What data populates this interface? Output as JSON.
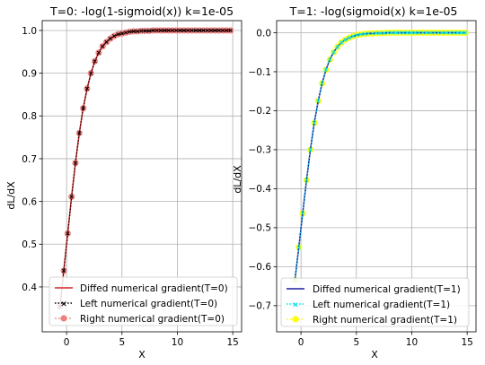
{
  "chart_data": [
    {
      "type": "line",
      "title": "T=0: -log(1-sigmoid(x)) k=1e-05",
      "xlabel": "X",
      "ylabel": "dL/dX",
      "xlim": [
        -2.2,
        15.8
      ],
      "ylim": [
        0.295,
        1.023
      ],
      "xticks": [
        0,
        5,
        10,
        15
      ],
      "xtick_labels": [
        "0",
        "5",
        "10",
        "15"
      ],
      "yticks": [
        0.4,
        0.5,
        0.6,
        0.7,
        0.8,
        0.9,
        1.0
      ],
      "ytick_labels": [
        "0.4",
        "0.5",
        "0.6",
        "0.7",
        "0.8",
        "0.9",
        "1.0"
      ],
      "grid": true,
      "legend_position": "lower-right",
      "series": [
        {
          "name": "Diffed numerical gradient(T=0)",
          "style": "solid",
          "color": "#d62728"
        },
        {
          "name": "Left numerical gradient(T=0)",
          "style": "dotted-x",
          "color": "#000000"
        },
        {
          "name": "Right numerical gradient(T=0)",
          "style": "circle-markers",
          "color": "#f08080"
        }
      ],
      "x": [
        -0.6,
        -0.25,
        0.1,
        0.45,
        0.8,
        1.15,
        1.5,
        1.85,
        2.2,
        2.55,
        2.9,
        3.25,
        3.6,
        3.95,
        4.3,
        4.65,
        5.0,
        5.35,
        5.7,
        6.05,
        6.4,
        6.75,
        7.1,
        7.45,
        7.8,
        8.15,
        8.5,
        8.85,
        9.2,
        9.55,
        9.9,
        10.25,
        10.6,
        10.95,
        11.3,
        11.65,
        12.0,
        12.35,
        12.7,
        13.05,
        13.4,
        13.75,
        14.1,
        14.45,
        14.8
      ],
      "y": [
        0.354,
        0.438,
        0.525,
        0.611,
        0.69,
        0.76,
        0.818,
        0.864,
        0.9,
        0.928,
        0.948,
        0.963,
        0.973,
        0.981,
        0.987,
        0.991,
        0.993,
        0.995,
        0.997,
        0.998,
        0.998,
        0.999,
        0.999,
        0.999,
        1.0,
        1.0,
        1.0,
        1.0,
        1.0,
        1.0,
        1.0,
        1.0,
        1.0,
        1.0,
        1.0,
        1.0,
        1.0,
        1.0,
        1.0,
        1.0,
        1.0,
        1.0,
        1.0,
        1.0,
        1.0
      ]
    },
    {
      "type": "line",
      "title": "T=1: -log(sigmoid(x) k=1e-05",
      "xlabel": "X",
      "ylabel": "dL/dX",
      "xlim": [
        -2.2,
        15.8
      ],
      "ylim": [
        -0.767,
        0.031
      ],
      "xticks": [
        0,
        5,
        10,
        15
      ],
      "xtick_labels": [
        "0",
        "5",
        "10",
        "15"
      ],
      "yticks": [
        -0.7,
        -0.6,
        -0.5,
        -0.4,
        -0.3,
        -0.2,
        -0.1,
        0.0
      ],
      "ytick_labels": [
        "−0.7",
        "−0.6",
        "−0.5",
        "−0.4",
        "−0.3",
        "−0.2",
        "−0.1",
        "0.0"
      ],
      "grid": true,
      "legend_position": "lower-right",
      "series": [
        {
          "name": "Diffed numerical gradient(T=1)",
          "style": "solid",
          "color": "#1f1f9f"
        },
        {
          "name": "Left numerical gradient(T=1)",
          "style": "dotted-x",
          "color": "#00e5ee"
        },
        {
          "name": "Right numerical gradient(T=1)",
          "style": "circle-markers",
          "color": "#ffff00"
        }
      ],
      "x": [
        -0.55,
        -0.2,
        0.15,
        0.5,
        0.85,
        1.2,
        1.55,
        1.9,
        2.25,
        2.6,
        2.95,
        3.3,
        3.65,
        4.0,
        4.35,
        4.7,
        5.05,
        5.4,
        5.75,
        6.1,
        6.45,
        6.8,
        7.15,
        7.5,
        7.85,
        8.2,
        8.55,
        8.9,
        9.25,
        9.6,
        9.95,
        10.3,
        10.65,
        11.0,
        11.35,
        11.7,
        12.05,
        12.4,
        12.75,
        13.1,
        13.45,
        13.8,
        14.15,
        14.5,
        14.85
      ],
      "y": [
        -0.634,
        -0.55,
        -0.463,
        -0.378,
        -0.3,
        -0.231,
        -0.175,
        -0.13,
        -0.095,
        -0.069,
        -0.05,
        -0.036,
        -0.025,
        -0.018,
        -0.013,
        -0.009,
        -0.006,
        -0.004,
        -0.003,
        -0.002,
        -0.002,
        -0.001,
        -0.001,
        -0.001,
        0.0,
        0.0,
        0.0,
        0.0,
        0.0,
        0.0,
        0.0,
        0.0,
        0.0,
        0.0,
        0.0,
        0.0,
        0.0,
        0.0,
        0.0,
        0.0,
        0.0,
        0.0,
        0.0,
        0.0,
        0.0
      ]
    }
  ]
}
